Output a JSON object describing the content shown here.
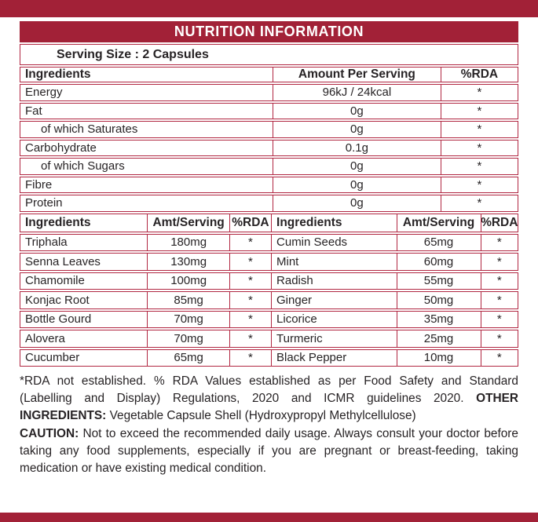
{
  "colors": {
    "red_fill": "#A22137",
    "red_line": "#B12742",
    "text": "#272325"
  },
  "title": "NUTRITION INFORMATION",
  "serving_size": "Serving Size : 2 Capsules",
  "main_table": {
    "headers": [
      "Ingredients",
      "Amount Per Serving",
      "%RDA"
    ],
    "rows": [
      {
        "name": "Energy",
        "amount": "96kJ / 24kcal",
        "rda": "*"
      },
      {
        "name": "Fat",
        "amount": "0g",
        "rda": "*"
      },
      {
        "name": "of which Saturates",
        "amount": "0g",
        "rda": "*"
      },
      {
        "name": "Carbohydrate",
        "amount": "0.1g",
        "rda": "*"
      },
      {
        "name": "of which Sugars",
        "amount": "0g",
        "rda": "*"
      },
      {
        "name": "Fibre",
        "amount": "0g",
        "rda": "*"
      },
      {
        "name": "Protein",
        "amount": "0g",
        "rda": "*"
      }
    ]
  },
  "ingredients_table": {
    "headers": [
      "Ingredients",
      "Amt/Serving",
      "%RDA",
      "Ingredients",
      "Amt/Serving",
      "%RDA"
    ],
    "rows": [
      {
        "l_name": "Triphala",
        "l_amt": "180mg",
        "l_rda": "*",
        "r_name": "Cumin Seeds",
        "r_amt": "65mg",
        "r_rda": "*"
      },
      {
        "l_name": "Senna Leaves",
        "l_amt": "130mg",
        "l_rda": "*",
        "r_name": "Mint",
        "r_amt": "60mg",
        "r_rda": "*"
      },
      {
        "l_name": "Chamomile",
        "l_amt": "100mg",
        "l_rda": "*",
        "r_name": "Radish",
        "r_amt": "55mg",
        "r_rda": "*"
      },
      {
        "l_name": "Konjac Root",
        "l_amt": "85mg",
        "l_rda": "*",
        "r_name": "Ginger",
        "r_amt": "50mg",
        "r_rda": "*"
      },
      {
        "l_name": "Bottle Gourd",
        "l_amt": "70mg",
        "l_rda": "*",
        "r_name": "Licorice",
        "r_amt": "35mg",
        "r_rda": "*"
      },
      {
        "l_name": "Alovera",
        "l_amt": "70mg",
        "l_rda": "*",
        "r_name": "Turmeric",
        "r_amt": "25mg",
        "r_rda": "*"
      },
      {
        "l_name": "Cucumber",
        "l_amt": "65mg",
        "l_rda": "*",
        "r_name": "Black Pepper",
        "r_amt": "10mg",
        "r_rda": "*"
      }
    ]
  },
  "footnotes": {
    "rda_text": "*RDA not established. % RDA Values established as per Food Safety and Standard (Labelling and Display) Regulations, 2020 and ICMR guidelines 2020. ",
    "other_ingredients_label": "OTHER INGREDIENTS:",
    "other_ingredients_text": " Vegetable Capsule Shell (Hydroxypropyl Methylcellulose)",
    "caution_label": "CAUTION:",
    "caution_text": " Not to exceed the recommended daily usage. Always consult your doctor before taking any food supplements, especially if you are pregnant or breast-feeding, taking medication or have existing medical condition."
  }
}
